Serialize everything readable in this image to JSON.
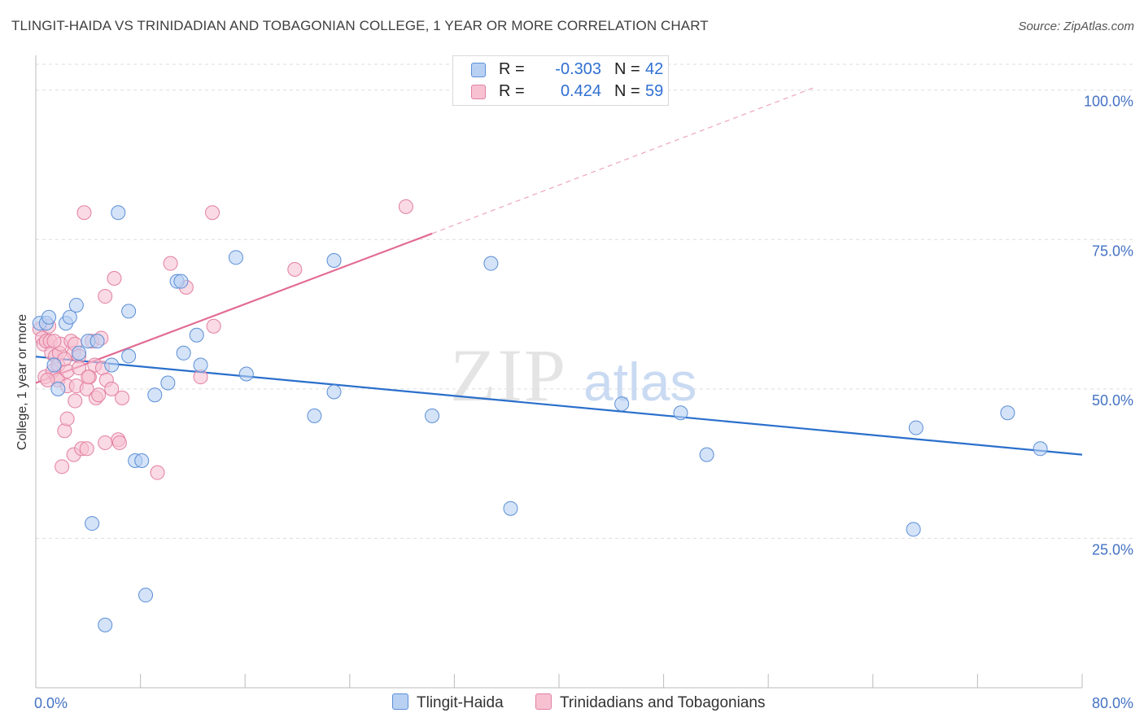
{
  "header": {
    "title": "TLINGIT-HAIDA VS TRINIDADIAN AND TOBAGONIAN COLLEGE, 1 YEAR OR MORE CORRELATION CHART",
    "source": "Source: ZipAtlas.com"
  },
  "watermark": {
    "zip": "ZIP",
    "atlas": "atlas"
  },
  "legend_top": {
    "rows": [
      {
        "r_label": "R =",
        "r_value": "-0.303",
        "n_label": "N =",
        "n_value": "42"
      },
      {
        "r_label": "R =",
        "r_value": "0.424",
        "n_label": "N =",
        "n_value": "59"
      }
    ]
  },
  "legend_bottom": {
    "items": [
      "Tlingit-Haida",
      "Trinidadians and Tobagonians"
    ]
  },
  "colors": {
    "blue_fill": "#b8d1f3",
    "blue_stroke": "#5b8ed6",
    "blue_line": "#2a6fcc",
    "pink_fill": "#f7c1d2",
    "pink_stroke": "#e27fa0",
    "pink_line": "#e26a93",
    "tick_text": "#4472c4",
    "grid": "#dddddd"
  },
  "chart_data": {
    "type": "scatter",
    "title": "TLINGIT-HAIDA VS TRINIDADIAN AND TOBAGONIAN COLLEGE, 1 YEAR OR MORE CORRELATION CHART",
    "xlabel": "",
    "ylabel": "College, 1 year or more",
    "xlim": [
      0,
      80
    ],
    "ylim": [
      0,
      105
    ],
    "x_tick_labels": [
      "0.0%",
      "80.0%"
    ],
    "y_ticks": [
      25,
      50,
      75,
      100
    ],
    "y_tick_labels": [
      "25.0%",
      "50.0%",
      "75.0%",
      "100.0%"
    ],
    "grid": true,
    "legend_position": "top-center",
    "series": [
      {
        "name": "Tlingit-Haida",
        "r": -0.303,
        "n": 42,
        "trend": {
          "x": [
            0,
            80
          ],
          "y": [
            55.4,
            39.0
          ],
          "dashed_extension": false
        },
        "points": [
          [
            0.3,
            61
          ],
          [
            0.8,
            61
          ],
          [
            1.0,
            62
          ],
          [
            1.4,
            54
          ],
          [
            1.7,
            50
          ],
          [
            2.3,
            61
          ],
          [
            2.6,
            62
          ],
          [
            3.1,
            64
          ],
          [
            3.3,
            56
          ],
          [
            4.0,
            58
          ],
          [
            4.3,
            27.5
          ],
          [
            4.7,
            58
          ],
          [
            5.3,
            10.5
          ],
          [
            5.8,
            54
          ],
          [
            6.3,
            79.5
          ],
          [
            7.1,
            63
          ],
          [
            7.1,
            55.5
          ],
          [
            7.6,
            38
          ],
          [
            8.1,
            38
          ],
          [
            8.4,
            15.5
          ],
          [
            9.1,
            49
          ],
          [
            10.1,
            51
          ],
          [
            10.8,
            68
          ],
          [
            11.1,
            68
          ],
          [
            11.3,
            56
          ],
          [
            12.3,
            59
          ],
          [
            12.6,
            54
          ],
          [
            15.3,
            72
          ],
          [
            16.1,
            52.5
          ],
          [
            21.3,
            45.5
          ],
          [
            22.8,
            71.5
          ],
          [
            22.8,
            49.5
          ],
          [
            30.3,
            45.5
          ],
          [
            34.8,
            71
          ],
          [
            36.3,
            30
          ],
          [
            44.8,
            47.5
          ],
          [
            49.3,
            46
          ],
          [
            51.3,
            39
          ],
          [
            67.3,
            43.5
          ],
          [
            67.1,
            26.5
          ],
          [
            74.3,
            46
          ],
          [
            76.8,
            40
          ]
        ]
      },
      {
        "name": "Trinidadians and Tobagonians",
        "r": 0.424,
        "n": 59,
        "trend": {
          "x": [
            0,
            30.3
          ],
          "y": [
            51.0,
            76.0
          ],
          "dashed_extension": true,
          "dashed_to": [
            59.6,
            100.5
          ]
        },
        "points": [
          [
            0.3,
            60
          ],
          [
            0.5,
            58.5
          ],
          [
            0.6,
            57.5
          ],
          [
            0.7,
            52
          ],
          [
            0.8,
            58
          ],
          [
            1.0,
            60.5
          ],
          [
            1.1,
            58
          ],
          [
            1.2,
            56
          ],
          [
            1.3,
            53
          ],
          [
            1.5,
            55.5
          ],
          [
            1.6,
            52
          ],
          [
            1.7,
            54
          ],
          [
            1.7,
            51.5
          ],
          [
            1.8,
            56
          ],
          [
            1.9,
            57.5
          ],
          [
            2.0,
            37
          ],
          [
            2.2,
            43
          ],
          [
            2.4,
            53
          ],
          [
            2.4,
            50.5
          ],
          [
            2.4,
            45
          ],
          [
            2.7,
            58
          ],
          [
            2.9,
            39
          ],
          [
            2.9,
            56
          ],
          [
            3.0,
            57.5
          ],
          [
            3.0,
            48
          ],
          [
            3.1,
            50.5
          ],
          [
            3.3,
            55.5
          ],
          [
            3.3,
            53.5
          ],
          [
            3.5,
            40
          ],
          [
            3.7,
            79.5
          ],
          [
            3.9,
            40
          ],
          [
            3.9,
            50
          ],
          [
            4.1,
            52
          ],
          [
            4.3,
            58
          ],
          [
            4.5,
            54
          ],
          [
            4.6,
            48.5
          ],
          [
            4.8,
            49
          ],
          [
            5.0,
            58.5
          ],
          [
            5.1,
            53.5
          ],
          [
            5.3,
            41
          ],
          [
            5.3,
            65.5
          ],
          [
            5.4,
            51.5
          ],
          [
            5.8,
            50
          ],
          [
            6.0,
            68.5
          ],
          [
            6.3,
            41.5
          ],
          [
            6.4,
            41
          ],
          [
            6.6,
            48.5
          ],
          [
            9.3,
            36
          ],
          [
            10.3,
            71
          ],
          [
            11.5,
            67
          ],
          [
            12.6,
            52
          ],
          [
            13.5,
            79.5
          ],
          [
            13.6,
            60.5
          ],
          [
            19.8,
            70
          ],
          [
            28.3,
            80.5
          ],
          [
            0.9,
            51.5
          ],
          [
            1.4,
            58
          ],
          [
            2.2,
            55
          ],
          [
            4.0,
            52
          ]
        ]
      }
    ]
  }
}
